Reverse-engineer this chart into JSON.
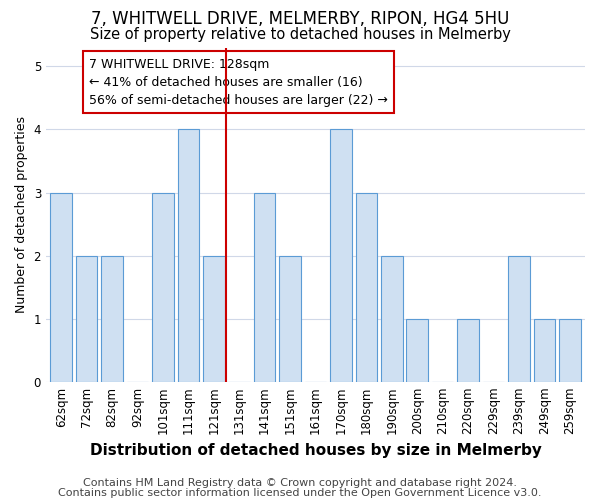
{
  "title": "7, WHITWELL DRIVE, MELMERBY, RIPON, HG4 5HU",
  "subtitle": "Size of property relative to detached houses in Melmerby",
  "xlabel": "Distribution of detached houses by size in Melmerby",
  "ylabel": "Number of detached properties",
  "categories": [
    "62sqm",
    "72sqm",
    "82sqm",
    "92sqm",
    "101sqm",
    "111sqm",
    "121sqm",
    "131sqm",
    "141sqm",
    "151sqm",
    "161sqm",
    "170sqm",
    "180sqm",
    "190sqm",
    "200sqm",
    "210sqm",
    "220sqm",
    "229sqm",
    "239sqm",
    "249sqm",
    "259sqm"
  ],
  "values": [
    3,
    2,
    2,
    0,
    3,
    4,
    2,
    0,
    3,
    2,
    0,
    4,
    3,
    2,
    1,
    0,
    1,
    0,
    2,
    1,
    1
  ],
  "bar_color": "#cfe0f2",
  "bar_edge_color": "#5b9bd5",
  "vline_x_idx": 7,
  "vline_color": "#cc0000",
  "annotation_line1": "7 WHITWELL DRIVE: 128sqm",
  "annotation_line2": "← 41% of detached houses are smaller (16)",
  "annotation_line3": "56% of semi-detached houses are larger (22) →",
  "annotation_box_edge": "#cc0000",
  "ylim": [
    0,
    5.3
  ],
  "yticks": [
    0,
    1,
    2,
    3,
    4,
    5
  ],
  "footer1": "Contains HM Land Registry data © Crown copyright and database right 2024.",
  "footer2": "Contains public sector information licensed under the Open Government Licence v3.0.",
  "title_fontsize": 12,
  "subtitle_fontsize": 10.5,
  "xlabel_fontsize": 11,
  "ylabel_fontsize": 9,
  "tick_fontsize": 8.5,
  "annotation_fontsize": 9,
  "footer_fontsize": 8,
  "bg_color": "#ffffff",
  "plot_bg_color": "#ffffff",
  "grid_color": "#d0d8e8"
}
